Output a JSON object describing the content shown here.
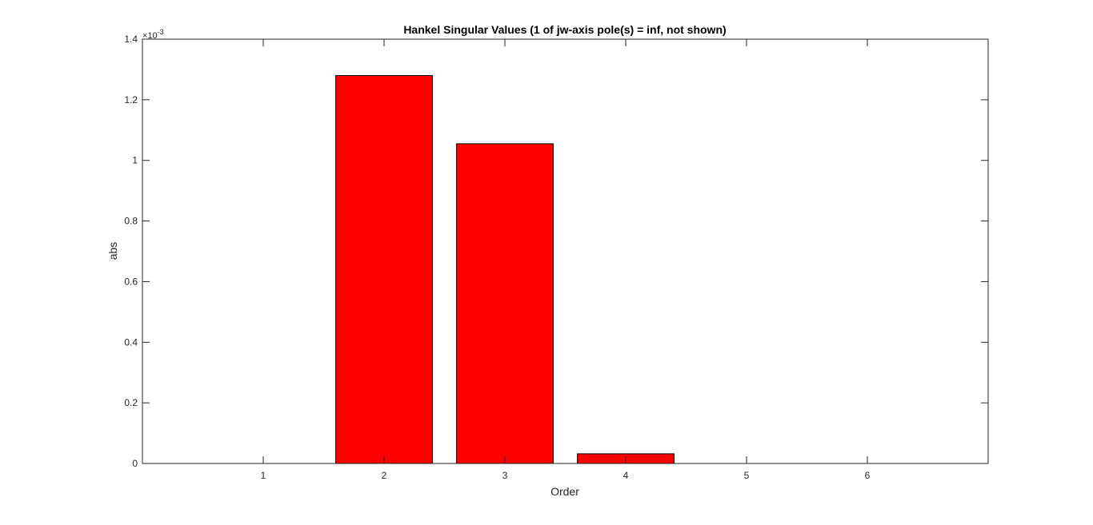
{
  "chart_data": {
    "type": "bar",
    "title": "Hankel Singular Values (1 of jw-axis pole(s) = inf, not shown)",
    "xlabel": "Order",
    "ylabel": "abs",
    "y_exponent_base": "10",
    "y_exponent_power": "-3",
    "categories": [
      "1",
      "2",
      "3",
      "4",
      "5",
      "6"
    ],
    "x": [
      1,
      2,
      3,
      4,
      5,
      6
    ],
    "values": [
      0,
      1.28,
      1.055,
      0.032,
      0,
      0
    ],
    "value_units_scale": 0.001,
    "xlim": [
      0.0,
      7.0
    ],
    "ylim": [
      0,
      1.4
    ],
    "yticks": [
      0,
      0.2,
      0.4,
      0.6,
      0.8,
      1,
      1.2,
      1.4
    ],
    "ytick_labels": [
      "0",
      "0.2",
      "0.4",
      "0.6",
      "0.8",
      "1",
      "1.2",
      "1.4"
    ],
    "grid": false,
    "box": true,
    "bar_color": "#ff0000",
    "bar_edge_color": "#000000",
    "background_color": "#ffffff"
  }
}
